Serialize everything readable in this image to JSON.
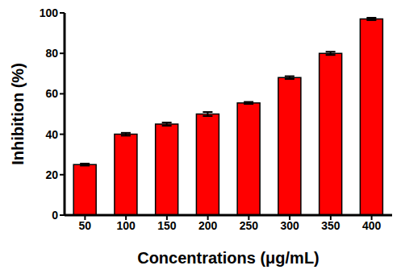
{
  "chart_data": {
    "type": "bar",
    "x_label": "Concentrations (μg/mL)",
    "y_label": "Inhibition (%)",
    "categories": [
      "50",
      "100",
      "150",
      "200",
      "250",
      "300",
      "350",
      "400"
    ],
    "values": [
      25,
      40,
      45,
      50,
      55.5,
      68,
      80,
      97
    ],
    "errors": [
      0.5,
      0.7,
      0.8,
      1.0,
      0.5,
      0.7,
      0.8,
      0.6
    ],
    "color": "#ff0000",
    "ylim": [
      0,
      100
    ],
    "yticks": [
      0,
      20,
      40,
      60,
      80,
      100
    ],
    "grid": false
  }
}
